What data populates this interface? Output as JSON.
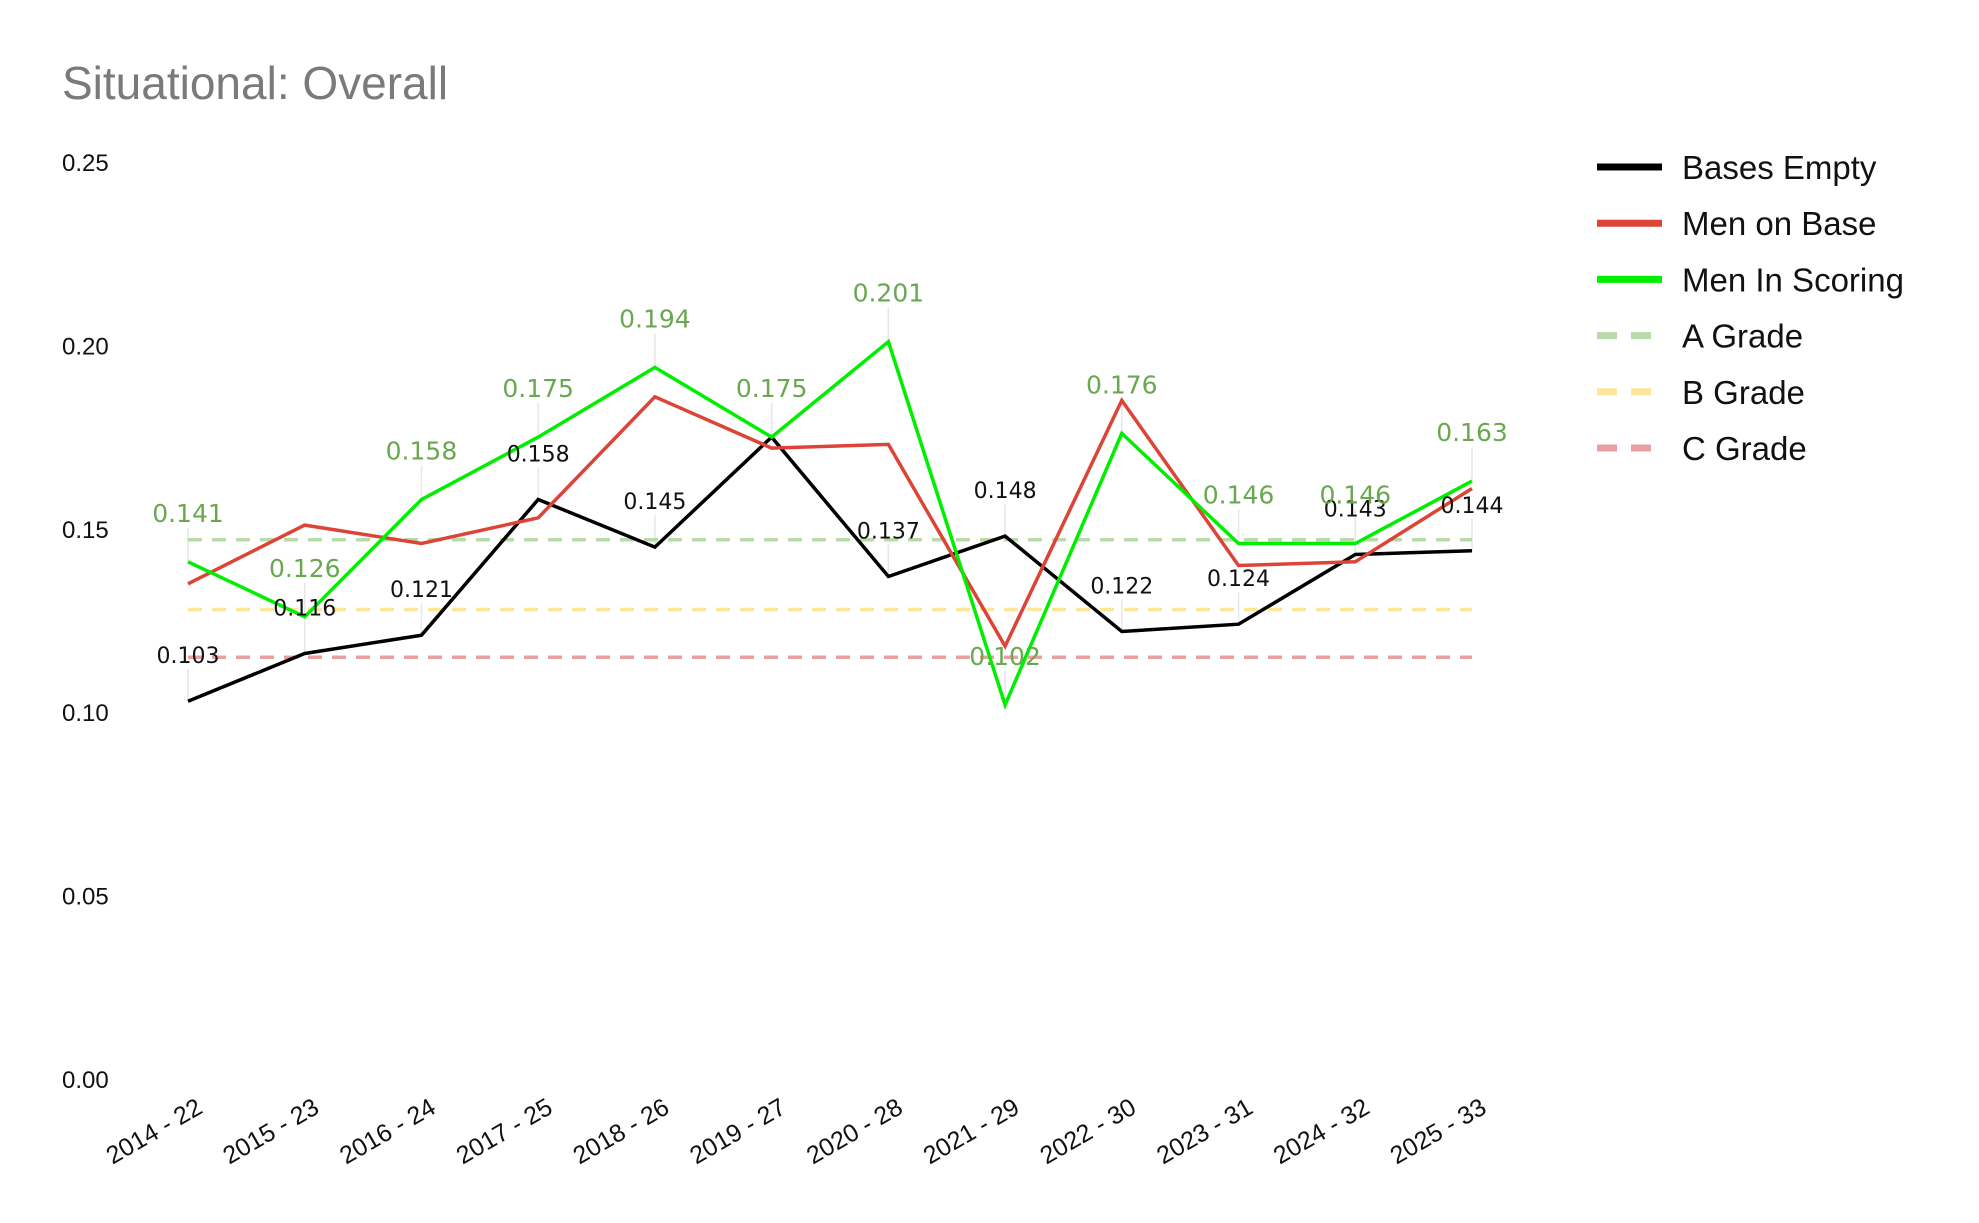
{
  "chart_data": {
    "type": "line",
    "title": "Situational: Overall",
    "xlabel": "",
    "ylabel": "",
    "ylim": [
      0,
      0.25
    ],
    "yticks": [
      "0.25",
      "0.20",
      "0.15",
      "0.10",
      "0.05",
      "0.00"
    ],
    "ytick_values": [
      0.25,
      0.2,
      0.15,
      0.1,
      0.05,
      0.0
    ],
    "grid": false,
    "legend_position": "top-right",
    "categories": [
      "2014 - 22",
      "2015 - 23",
      "2016 - 24",
      "2017 - 25",
      "2018 - 26",
      "2019 - 27",
      "2020 - 28",
      "2021 - 29",
      "2022 - 30",
      "2023 - 31",
      "2024 - 32",
      "2025 - 33"
    ],
    "series": [
      {
        "name": "Bases Empty",
        "color": "#000000",
        "style": "solid",
        "values": [
          0.103,
          0.116,
          0.121,
          0.158,
          0.145,
          0.175,
          0.137,
          0.148,
          0.122,
          0.124,
          0.143,
          0.144
        ],
        "labels": [
          "0.103",
          "0.116",
          "0.121",
          "0.158",
          "0.145",
          "",
          "0.137",
          "0.148",
          "0.122",
          "0.124",
          "0.143",
          "0.144"
        ]
      },
      {
        "name": "Men on Base",
        "color": "#db4437",
        "style": "solid",
        "values": [
          0.135,
          0.151,
          0.146,
          0.153,
          0.186,
          0.172,
          0.173,
          0.118,
          0.185,
          0.14,
          0.141,
          0.161
        ],
        "labels": []
      },
      {
        "name": "Men In Scoring",
        "color": "#00ee00",
        "style": "solid",
        "values": [
          0.141,
          0.126,
          0.158,
          0.175,
          0.194,
          0.175,
          0.201,
          0.102,
          0.176,
          0.146,
          0.146,
          0.163
        ],
        "labels": [
          "0.141",
          "0.126",
          "0.158",
          "0.175",
          "0.194",
          "0.175",
          "0.201",
          "0.102",
          "0.176",
          "0.146",
          "0.146",
          "0.163"
        ]
      },
      {
        "name": "A Grade",
        "color": "#b7dba8",
        "style": "dashed",
        "values": [
          0.147,
          0.147,
          0.147,
          0.147,
          0.147,
          0.147,
          0.147,
          0.147,
          0.147,
          0.147,
          0.147,
          0.147
        ],
        "labels": []
      },
      {
        "name": "B Grade",
        "color": "#fde59a",
        "style": "dashed",
        "values": [
          0.128,
          0.128,
          0.128,
          0.128,
          0.128,
          0.128,
          0.128,
          0.128,
          0.128,
          0.128,
          0.128,
          0.128
        ],
        "labels": []
      },
      {
        "name": "C Grade",
        "color": "#e9a0a0",
        "style": "dashed",
        "values": [
          0.115,
          0.115,
          0.115,
          0.115,
          0.115,
          0.115,
          0.115,
          0.115,
          0.115,
          0.115,
          0.115,
          0.115
        ],
        "labels": []
      }
    ],
    "label_colors": {
      "Bases Empty": "#111111",
      "Men In Scoring": "#6aa84f"
    }
  }
}
